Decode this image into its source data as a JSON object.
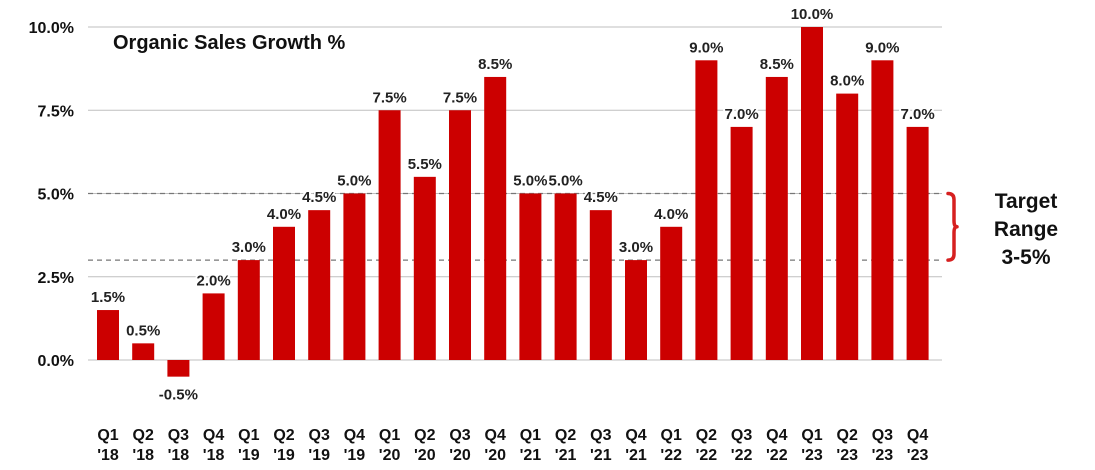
{
  "chart_data": {
    "type": "bar",
    "title": "Organic Sales Growth %",
    "categories": [
      [
        "Q1",
        "'18"
      ],
      [
        "Q2",
        "'18"
      ],
      [
        "Q3",
        "'18"
      ],
      [
        "Q4",
        "'18"
      ],
      [
        "Q1",
        "'19"
      ],
      [
        "Q2",
        "'19"
      ],
      [
        "Q3",
        "'19"
      ],
      [
        "Q4",
        "'19"
      ],
      [
        "Q1",
        "'20"
      ],
      [
        "Q2",
        "'20"
      ],
      [
        "Q3",
        "'20"
      ],
      [
        "Q4",
        "'20"
      ],
      [
        "Q1",
        "'21"
      ],
      [
        "Q2",
        "'21"
      ],
      [
        "Q3",
        "'21"
      ],
      [
        "Q4",
        "'21"
      ],
      [
        "Q1",
        "'22"
      ],
      [
        "Q2",
        "'22"
      ],
      [
        "Q3",
        "'22"
      ],
      [
        "Q4",
        "'22"
      ],
      [
        "Q1",
        "'23"
      ],
      [
        "Q2",
        "'23"
      ],
      [
        "Q3",
        "'23"
      ],
      [
        "Q4",
        "'23"
      ]
    ],
    "values": [
      1.5,
      0.5,
      -0.5,
      2.0,
      3.0,
      4.0,
      4.5,
      5.0,
      7.5,
      5.5,
      7.5,
      8.5,
      5.0,
      5.0,
      4.5,
      3.0,
      4.0,
      9.0,
      7.0,
      8.5,
      10.0,
      8.0,
      9.0,
      7.0
    ],
    "value_labels": [
      "1.5%",
      "0.5%",
      "-0.5%",
      "2.0%",
      "3.0%",
      "4.0%",
      "4.5%",
      "5.0%",
      "7.5%",
      "5.5%",
      "7.5%",
      "8.5%",
      "5.0%",
      "5.0%",
      "4.5%",
      "3.0%",
      "4.0%",
      "9.0%",
      "7.0%",
      "8.5%",
      "10.0%",
      "8.0%",
      "9.0%",
      "7.0%"
    ],
    "y_ticks": [
      0,
      2.5,
      5,
      7.5,
      10
    ],
    "y_tick_labels": [
      "0.0%",
      "2.5%",
      "5.0%",
      "7.5%",
      "10.0%"
    ],
    "ylim": [
      -0.5,
      10
    ],
    "xlabel": "",
    "ylabel": "",
    "grid": true,
    "target_range": {
      "low": 3,
      "high": 5,
      "label_lines": [
        "Target",
        "Range",
        "3-5%"
      ]
    },
    "colors": {
      "bar": "#cc0000",
      "bracket": "#d62020",
      "grid": "#bfbfbf",
      "target_line": "#777777"
    }
  }
}
